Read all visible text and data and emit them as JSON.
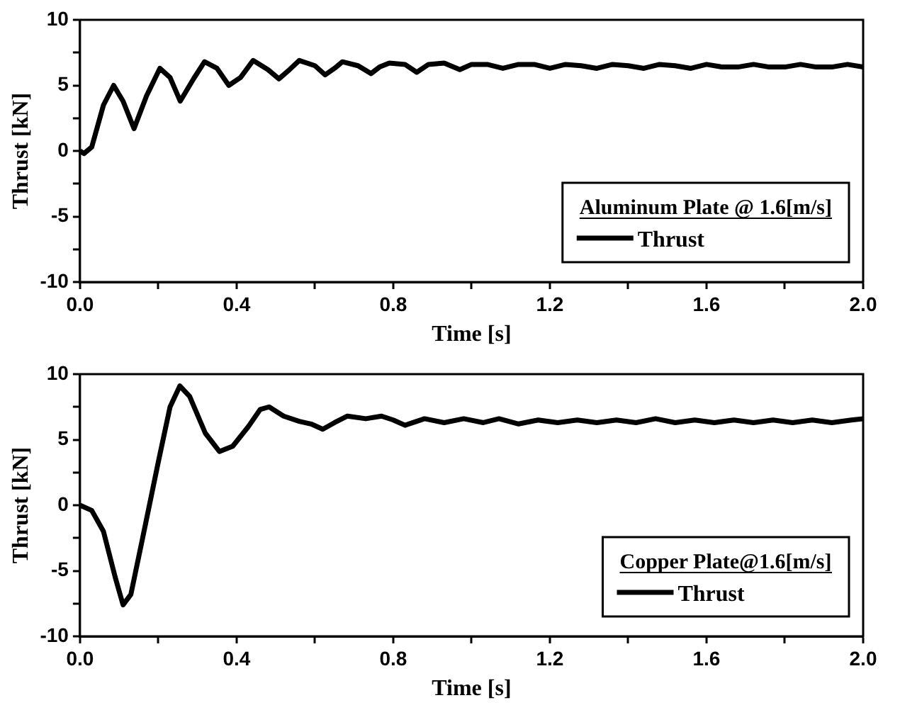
{
  "chart_data": [
    {
      "type": "line",
      "xlabel": "Time [s]",
      "ylabel": "Thrust [kN]",
      "legend_title": "Aluminum Plate @ 1.6[m/s]",
      "legend": "bottom right",
      "xlim": [
        0,
        2
      ],
      "xticks": [
        {
          "value": 0,
          "label": "0.0"
        },
        {
          "value": 0.2,
          "label": null
        },
        0.4,
        {
          "value": 0.6,
          "label": null
        },
        0.8,
        {
          "value": 1,
          "label": null
        },
        1.2,
        {
          "value": 1.4,
          "label": null
        },
        1.6,
        {
          "value": 1.8,
          "label": null
        },
        {
          "value": 2,
          "label": "2.0"
        }
      ],
      "ylim": [
        -10,
        10
      ],
      "yticks": [
        -10,
        {
          "value": -7.5,
          "label": null
        },
        -5,
        {
          "value": -2.5,
          "label": null
        },
        0,
        {
          "value": 2.5,
          "label": null
        },
        5,
        {
          "value": 7.5,
          "label": null
        },
        10
      ],
      "series": [
        {
          "name": "Thrust",
          "color": "#000000",
          "x": [
            0,
            0.01,
            0.03,
            0.06,
            0.086,
            0.11,
            0.138,
            0.17,
            0.204,
            0.23,
            0.256,
            0.29,
            0.318,
            0.35,
            0.38,
            0.41,
            0.442,
            0.48,
            0.508,
            0.535,
            0.56,
            0.6,
            0.626,
            0.65,
            0.67,
            0.71,
            0.743,
            0.765,
            0.79,
            0.83,
            0.86,
            0.89,
            0.93,
            0.97,
            1.0,
            1.04,
            1.08,
            1.12,
            1.16,
            1.2,
            1.24,
            1.28,
            1.32,
            1.36,
            1.4,
            1.44,
            1.48,
            1.52,
            1.56,
            1.6,
            1.64,
            1.68,
            1.72,
            1.76,
            1.8,
            1.84,
            1.88,
            1.92,
            1.96,
            2.0
          ],
          "values": [
            0,
            -0.2,
            0.3,
            3.5,
            5.0,
            3.8,
            1.7,
            4.2,
            6.3,
            5.6,
            3.8,
            5.5,
            6.8,
            6.3,
            5.0,
            5.6,
            6.9,
            6.2,
            5.5,
            6.2,
            6.9,
            6.5,
            5.8,
            6.3,
            6.8,
            6.5,
            5.9,
            6.4,
            6.7,
            6.6,
            6.0,
            6.6,
            6.7,
            6.2,
            6.6,
            6.6,
            6.3,
            6.6,
            6.6,
            6.3,
            6.6,
            6.5,
            6.3,
            6.6,
            6.5,
            6.3,
            6.6,
            6.5,
            6.3,
            6.6,
            6.4,
            6.4,
            6.6,
            6.4,
            6.4,
            6.6,
            6.4,
            6.4,
            6.6,
            6.4
          ]
        }
      ]
    },
    {
      "type": "line",
      "xlabel": "Time [s]",
      "ylabel": "Thrust [kN]",
      "legend_title": "Copper Plate@1.6[m/s]",
      "legend": "bottom right",
      "xlim": [
        0,
        2
      ],
      "xticks": [
        {
          "value": 0,
          "label": "0.0"
        },
        {
          "value": 0.2,
          "label": null
        },
        0.4,
        {
          "value": 0.6,
          "label": null
        },
        0.8,
        {
          "value": 1,
          "label": null
        },
        1.2,
        {
          "value": 1.4,
          "label": null
        },
        1.6,
        {
          "value": 1.8,
          "label": null
        },
        {
          "value": 2,
          "label": "2.0"
        }
      ],
      "ylim": [
        -10,
        10
      ],
      "yticks": [
        -10,
        {
          "value": -7.5,
          "label": null
        },
        -5,
        {
          "value": -2.5,
          "label": null
        },
        0,
        {
          "value": 2.5,
          "label": null
        },
        5,
        {
          "value": 7.5,
          "label": null
        },
        10
      ],
      "series": [
        {
          "name": "Thrust",
          "color": "#000000",
          "x": [
            0,
            0.03,
            0.06,
            0.09,
            0.11,
            0.13,
            0.16,
            0.2,
            0.23,
            0.255,
            0.28,
            0.32,
            0.356,
            0.39,
            0.43,
            0.46,
            0.483,
            0.52,
            0.56,
            0.59,
            0.62,
            0.65,
            0.683,
            0.73,
            0.77,
            0.8,
            0.83,
            0.88,
            0.93,
            0.98,
            1.03,
            1.07,
            1.12,
            1.17,
            1.22,
            1.27,
            1.32,
            1.37,
            1.42,
            1.47,
            1.52,
            1.57,
            1.62,
            1.67,
            1.72,
            1.77,
            1.82,
            1.87,
            1.92,
            1.97,
            2.0
          ],
          "values": [
            0,
            -0.4,
            -2.0,
            -5.5,
            -7.6,
            -6.8,
            -2.5,
            3.3,
            7.5,
            9.1,
            8.3,
            5.5,
            4.1,
            4.5,
            6.0,
            7.3,
            7.5,
            6.8,
            6.4,
            6.2,
            5.8,
            6.3,
            6.8,
            6.6,
            6.8,
            6.5,
            6.1,
            6.6,
            6.3,
            6.6,
            6.3,
            6.6,
            6.2,
            6.5,
            6.3,
            6.5,
            6.3,
            6.5,
            6.3,
            6.6,
            6.3,
            6.5,
            6.3,
            6.5,
            6.3,
            6.5,
            6.3,
            6.5,
            6.3,
            6.5,
            6.6
          ]
        }
      ]
    }
  ]
}
